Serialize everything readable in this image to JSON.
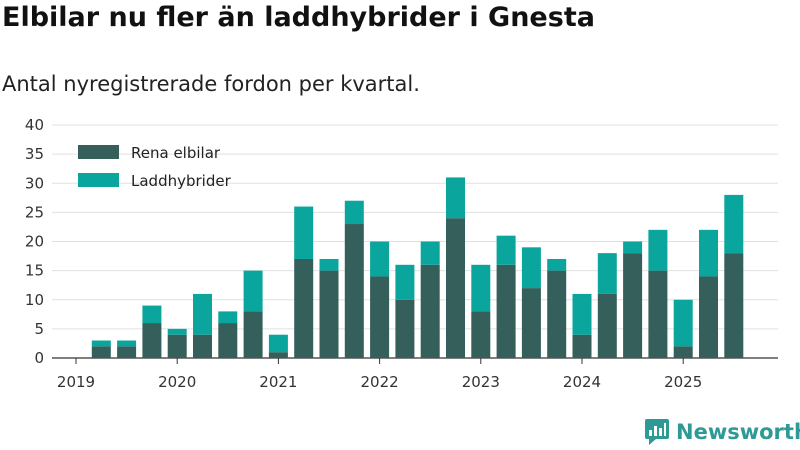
{
  "header": {
    "title": "Elbilar nu fler än laddhybrider i Gnesta",
    "subtitle": "Antal nyregistrerade fordon per kvartal."
  },
  "branding": {
    "logo_text": "Newsworthy",
    "logo_icon": "chart-bubble-icon",
    "color": "#2e9a96"
  },
  "chart_data": {
    "type": "bar",
    "stacked": true,
    "title": "Elbilar nu fler än laddhybrider i Gnesta",
    "subtitle": "Antal nyregistrerade fordon per kvartal.",
    "xlabel": "",
    "ylabel": "",
    "ylim": [
      0,
      40
    ],
    "yticks": [
      0,
      5,
      10,
      15,
      20,
      25,
      30,
      35,
      40
    ],
    "x_tick_labels": [
      "2019",
      "2020",
      "2021",
      "2022",
      "2023",
      "2024",
      "2025"
    ],
    "categories": [
      "2019 Q1",
      "2019 Q2",
      "2019 Q3",
      "2019 Q4",
      "2020 Q1",
      "2020 Q2",
      "2020 Q3",
      "2020 Q4",
      "2021 Q1",
      "2021 Q2",
      "2021 Q3",
      "2021 Q4",
      "2022 Q1",
      "2022 Q2",
      "2022 Q3",
      "2022 Q4",
      "2023 Q1",
      "2023 Q2",
      "2023 Q3",
      "2023 Q4",
      "2024 Q1",
      "2024 Q2",
      "2024 Q3",
      "2024 Q4",
      "2025 Q1",
      "2025 Q2",
      "2025 Q3"
    ],
    "legend_position": "top-left",
    "grid": true,
    "series": [
      {
        "name": "Rena elbilar",
        "color": "#355f5b",
        "values": [
          0,
          2,
          2,
          6,
          4,
          4,
          6,
          8,
          1,
          17,
          15,
          23,
          14,
          10,
          16,
          24,
          8,
          16,
          12,
          15,
          4,
          11,
          18,
          15,
          2,
          14,
          18
        ]
      },
      {
        "name": "Laddhybrider",
        "color": "#0aa59c",
        "values": [
          0,
          1,
          1,
          3,
          1,
          7,
          2,
          7,
          3,
          9,
          2,
          4,
          6,
          6,
          4,
          7,
          8,
          5,
          7,
          2,
          7,
          7,
          2,
          7,
          8,
          8,
          10
        ]
      }
    ]
  }
}
